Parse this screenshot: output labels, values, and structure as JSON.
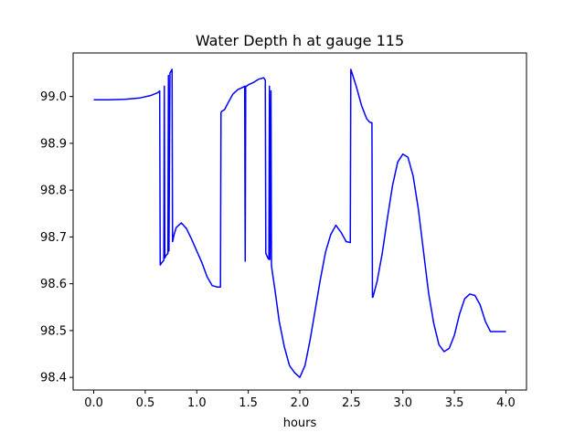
{
  "chart_data": {
    "type": "line",
    "title": "Water Depth h at gauge 115",
    "xlabel": "hours",
    "ylabel": "",
    "xlim": [
      -0.2,
      4.2
    ],
    "ylim": [
      98.373,
      99.093
    ],
    "x_ticks": [
      0.0,
      0.5,
      1.0,
      1.5,
      2.0,
      2.5,
      3.0,
      3.5,
      4.0
    ],
    "x_tick_labels": [
      "0.0",
      "0.5",
      "1.0",
      "1.5",
      "2.0",
      "2.5",
      "3.0",
      "3.5",
      "4.0"
    ],
    "y_ticks": [
      98.4,
      98.5,
      98.6,
      98.7,
      98.8,
      98.9,
      99.0
    ],
    "y_tick_labels": [
      "98.4",
      "98.5",
      "98.6",
      "98.7",
      "98.8",
      "98.9",
      "99.0"
    ],
    "grid": false,
    "legend": "none",
    "series": [
      {
        "color": "#0000ff",
        "x": [
          0.0,
          0.15,
          0.3,
          0.45,
          0.55,
          0.62,
          0.64,
          0.645,
          0.66,
          0.68,
          0.685,
          0.69,
          0.7,
          0.72,
          0.725,
          0.73,
          0.74,
          0.76,
          0.765,
          0.77,
          0.78,
          0.8,
          0.85,
          0.9,
          0.95,
          1.0,
          1.05,
          1.1,
          1.15,
          1.2,
          1.23,
          1.235,
          1.24,
          1.27,
          1.3,
          1.35,
          1.4,
          1.45,
          1.465,
          1.47,
          1.475,
          1.48,
          1.49,
          1.5,
          1.55,
          1.6,
          1.65,
          1.665,
          1.67,
          1.68,
          1.69,
          1.7,
          1.705,
          1.71,
          1.72,
          1.725,
          1.73,
          1.76,
          1.8,
          1.85,
          1.9,
          1.95,
          2.0,
          2.05,
          2.1,
          2.15,
          2.2,
          2.25,
          2.3,
          2.35,
          2.4,
          2.45,
          2.49,
          2.495,
          2.5,
          2.55,
          2.6,
          2.65,
          2.68,
          2.7,
          2.705,
          2.71,
          2.75,
          2.8,
          2.85,
          2.9,
          2.95,
          3.0,
          3.05,
          3.1,
          3.15,
          3.2,
          3.25,
          3.3,
          3.35,
          3.4,
          3.45,
          3.5,
          3.55,
          3.6,
          3.65,
          3.7,
          3.75,
          3.8,
          3.85,
          3.9,
          3.95,
          4.0
        ],
        "y": [
          98.993,
          98.993,
          98.994,
          98.997,
          99.002,
          99.008,
          99.012,
          98.64,
          98.645,
          98.65,
          99.022,
          98.655,
          98.66,
          98.665,
          99.045,
          98.67,
          99.05,
          99.058,
          98.69,
          98.695,
          98.705,
          98.72,
          98.73,
          98.718,
          98.695,
          98.67,
          98.645,
          98.615,
          98.596,
          98.593,
          98.593,
          98.965,
          98.968,
          98.972,
          98.985,
          99.005,
          99.015,
          99.02,
          99.022,
          98.648,
          99.022,
          99.022,
          99.023,
          99.025,
          99.03,
          99.037,
          99.04,
          99.035,
          98.665,
          98.66,
          98.655,
          98.652,
          99.022,
          98.652,
          99.012,
          98.64,
          98.63,
          98.585,
          98.52,
          98.465,
          98.425,
          98.41,
          98.4,
          98.425,
          98.48,
          98.545,
          98.61,
          98.668,
          98.705,
          98.725,
          98.71,
          98.69,
          98.688,
          99.058,
          99.055,
          99.02,
          98.98,
          98.952,
          98.945,
          98.944,
          98.571,
          98.572,
          98.605,
          98.665,
          98.74,
          98.81,
          98.86,
          98.877,
          98.87,
          98.83,
          98.76,
          98.67,
          98.58,
          98.515,
          98.47,
          98.455,
          98.462,
          98.49,
          98.535,
          98.568,
          98.578,
          98.575,
          98.555,
          98.52,
          98.498,
          98.498,
          98.498,
          98.498
        ]
      }
    ]
  }
}
